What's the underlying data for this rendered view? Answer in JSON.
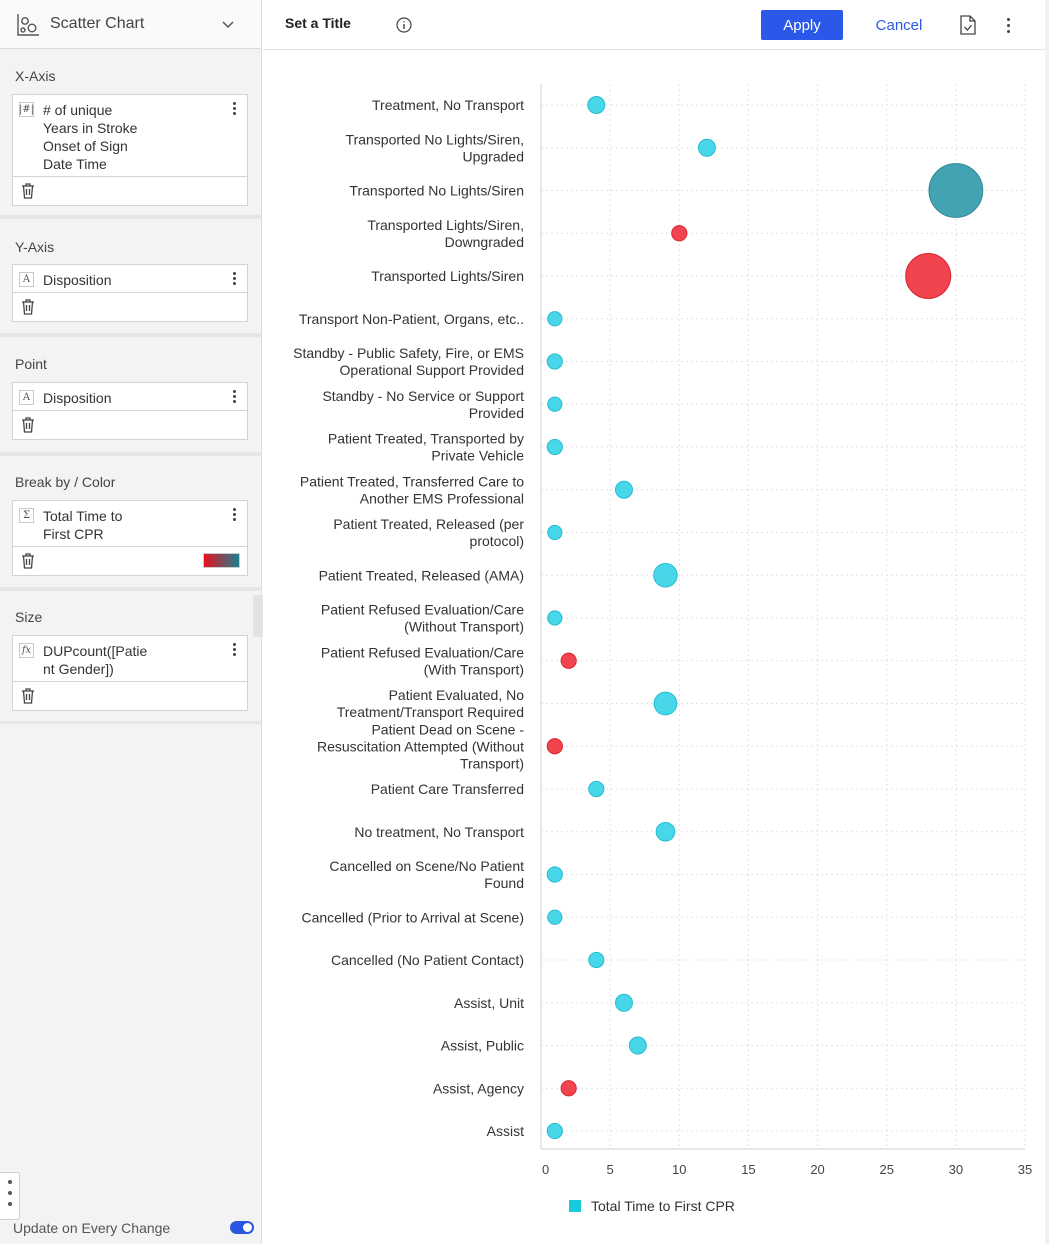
{
  "panel": {
    "chart_type": "Scatter Chart",
    "chart_type_icon": "scatter-chart-icon",
    "sections": {
      "x_axis": {
        "title": "X-Axis",
        "field": "# of unique\nYears in Stroke\nOnset of Sign\nDate Time",
        "type_glyph": "|#|"
      },
      "y_axis": {
        "title": "Y-Axis",
        "field": "Disposition",
        "type_glyph": "A"
      },
      "point": {
        "title": "Point",
        "field": "Disposition",
        "type_glyph": "A"
      },
      "break_by": {
        "title": "Break by / Color",
        "field": "Total Time to\nFirst CPR",
        "type_glyph": "Σ",
        "gradient": [
          "#e8101e",
          "#1b7f8f"
        ]
      },
      "size": {
        "title": "Size",
        "field": "DUPcount([Patie\nnt Gender])",
        "type_glyph": "fx"
      }
    },
    "update_label": "Update on Every Change",
    "update_on": true
  },
  "topbar": {
    "title": "Set a Title",
    "apply_label": "Apply",
    "cancel_label": "Cancel"
  },
  "colors": {
    "accent": "#2b58e8",
    "cyan": "#3dd5e8",
    "red": "#f03a45",
    "teal": "#3a9eaf"
  },
  "chart_data": {
    "type": "scatter",
    "legend": [
      "Total Time to First CPR"
    ],
    "legend_color": "#19c9dc",
    "xlim": [
      0,
      35
    ],
    "xticks": [
      0,
      5,
      10,
      15,
      20,
      25,
      30,
      35
    ],
    "grid": true,
    "categories": [
      {
        "label": "Treatment, No Transport",
        "x": 4,
        "size": 1,
        "color": "cyan"
      },
      {
        "label": "Transported No Lights/Siren,\nUpgraded",
        "x": 12,
        "size": 1,
        "color": "cyan"
      },
      {
        "label": "Transported No Lights/Siren",
        "x": 30,
        "size": 10,
        "color": "teal"
      },
      {
        "label": "Transported Lights/Siren,\nDowngraded",
        "x": 10,
        "size": 0.8,
        "color": "red"
      },
      {
        "label": "Transported Lights/Siren",
        "x": 28,
        "size": 7,
        "color": "red"
      },
      {
        "label": "Transport Non-Patient, Organs, etc..",
        "x": 1,
        "size": 0.7,
        "color": "cyan"
      },
      {
        "label": "Standby - Public Safety, Fire, or EMS\nOperational Support Provided",
        "x": 1,
        "size": 0.8,
        "color": "cyan"
      },
      {
        "label": "Standby - No Service or Support\nProvided",
        "x": 1,
        "size": 0.7,
        "color": "cyan"
      },
      {
        "label": "Patient Treated, Transported by\nPrivate Vehicle",
        "x": 1,
        "size": 0.8,
        "color": "cyan"
      },
      {
        "label": "Patient Treated, Transferred Care to\nAnother EMS Professional",
        "x": 6,
        "size": 1,
        "color": "cyan"
      },
      {
        "label": "Patient Treated, Released (per\nprotocol)",
        "x": 1,
        "size": 0.7,
        "color": "cyan"
      },
      {
        "label": "Patient Treated, Released (AMA)",
        "x": 9,
        "size": 1.9,
        "color": "cyan"
      },
      {
        "label": "Patient Refused Evaluation/Care\n(Without Transport)",
        "x": 1,
        "size": 0.7,
        "color": "cyan"
      },
      {
        "label": "Patient Refused Evaluation/Care\n(With Transport)",
        "x": 2,
        "size": 0.8,
        "color": "red"
      },
      {
        "label": "Patient Evaluated, No\nTreatment/Transport Required",
        "x": 9,
        "size": 1.8,
        "color": "cyan"
      },
      {
        "label": "Patient Dead on Scene -\nResuscitation Attempted (Without\nTransport)",
        "x": 1,
        "size": 0.8,
        "color": "red"
      },
      {
        "label": "Patient Care Transferred",
        "x": 4,
        "size": 0.8,
        "color": "cyan"
      },
      {
        "label": "No treatment, No Transport",
        "x": 9,
        "size": 1.2,
        "color": "cyan"
      },
      {
        "label": "Cancelled on Scene/No Patient\nFound",
        "x": 1,
        "size": 0.8,
        "color": "cyan"
      },
      {
        "label": "Cancelled (Prior to Arrival at Scene)",
        "x": 1,
        "size": 0.7,
        "color": "cyan"
      },
      {
        "label": "Cancelled (No Patient Contact)",
        "x": 4,
        "size": 0.8,
        "color": "cyan"
      },
      {
        "label": "Assist, Unit",
        "x": 6,
        "size": 1,
        "color": "cyan"
      },
      {
        "label": "Assist, Public",
        "x": 7,
        "size": 1,
        "color": "cyan"
      },
      {
        "label": "Assist, Agency",
        "x": 2,
        "size": 0.8,
        "color": "red"
      },
      {
        "label": "Assist",
        "x": 1,
        "size": 0.8,
        "color": "cyan"
      }
    ]
  }
}
